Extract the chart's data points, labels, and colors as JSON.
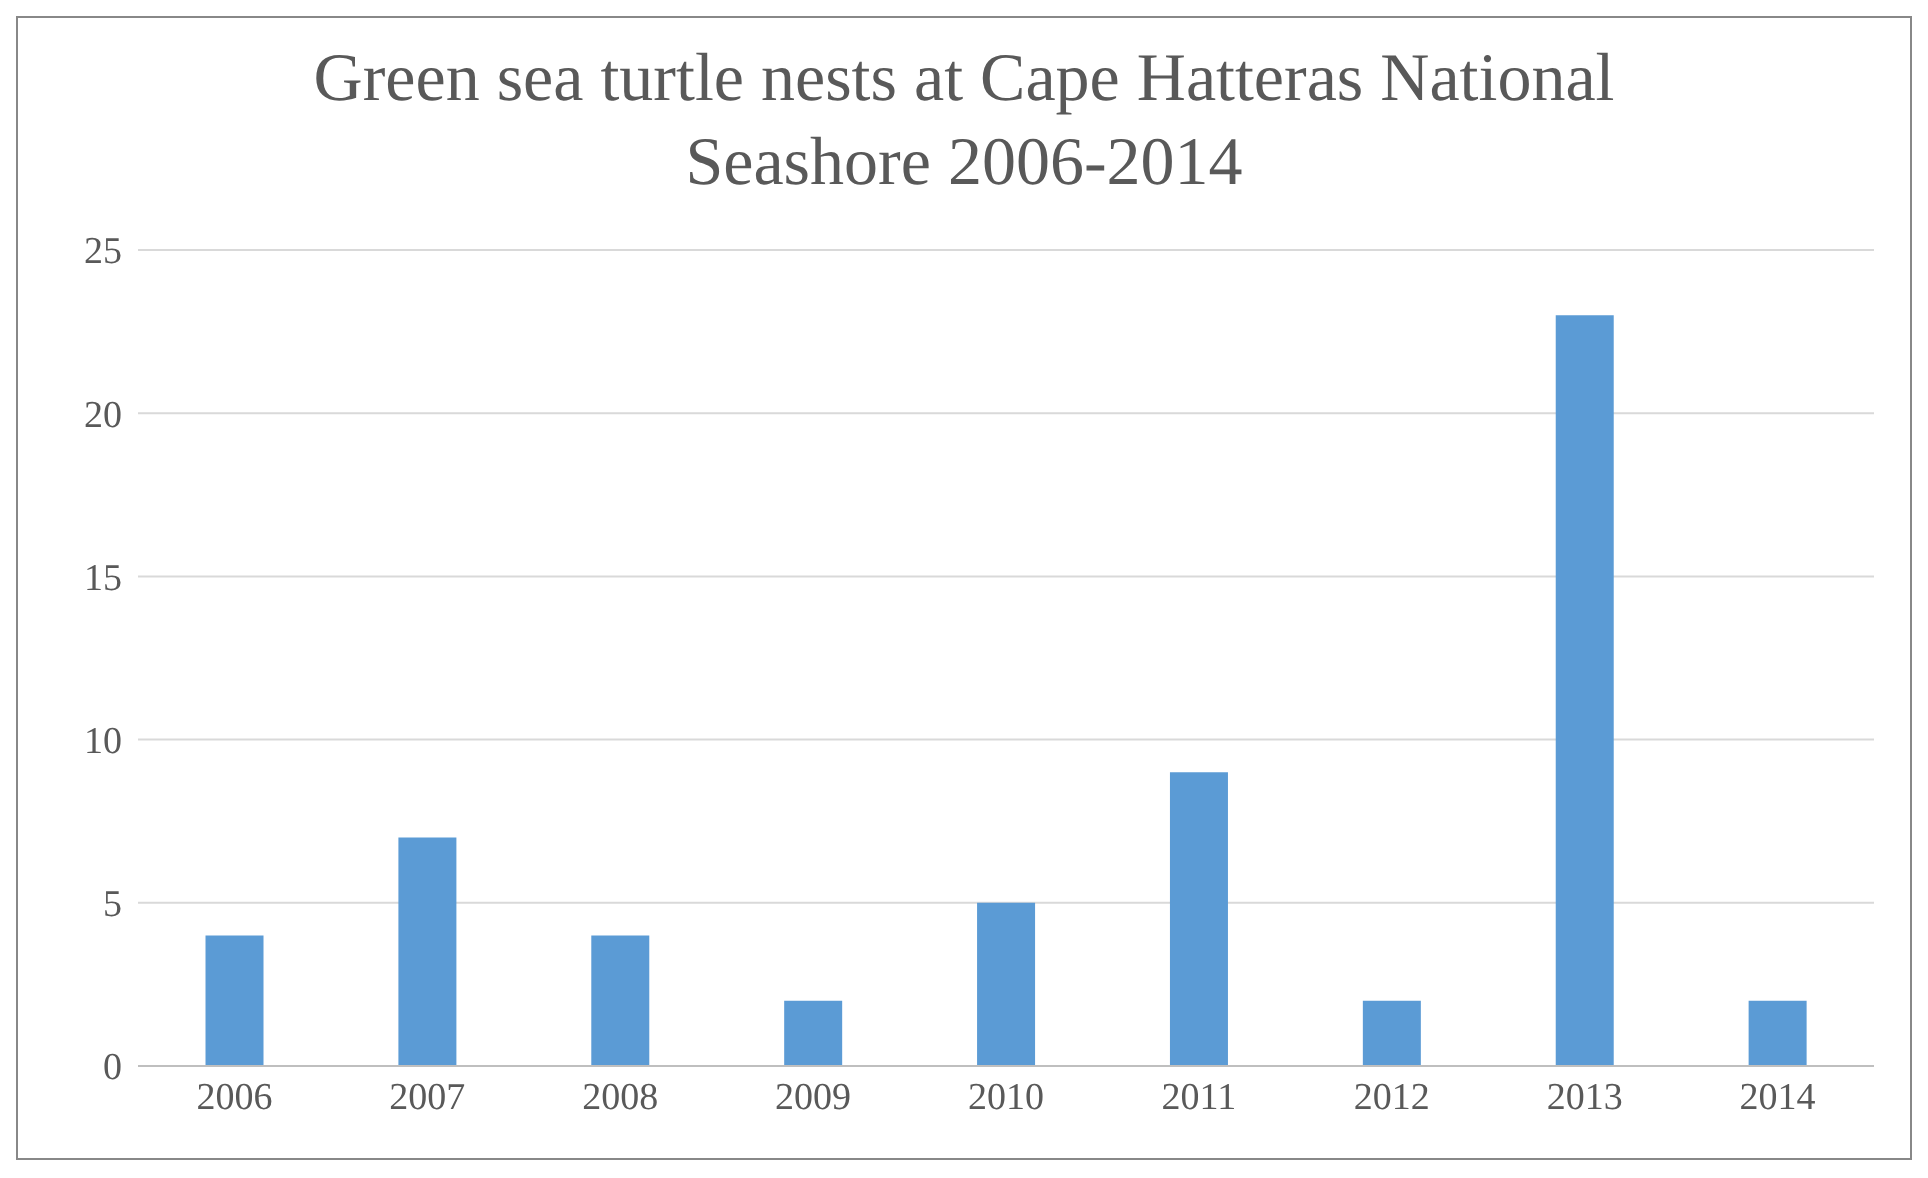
{
  "chart_data": {
    "type": "bar",
    "title": "Green sea turtle nests at Cape Hatteras National Seashore 2006-2014",
    "categories": [
      "2006",
      "2007",
      "2008",
      "2009",
      "2010",
      "2011",
      "2012",
      "2013",
      "2014"
    ],
    "values": [
      4,
      7,
      4,
      2,
      5,
      9,
      2,
      23,
      2
    ],
    "color": "#5b9bd5",
    "ylim": [
      0,
      25
    ],
    "yticks": [
      0,
      5,
      10,
      15,
      20,
      25
    ],
    "grid": "y"
  }
}
